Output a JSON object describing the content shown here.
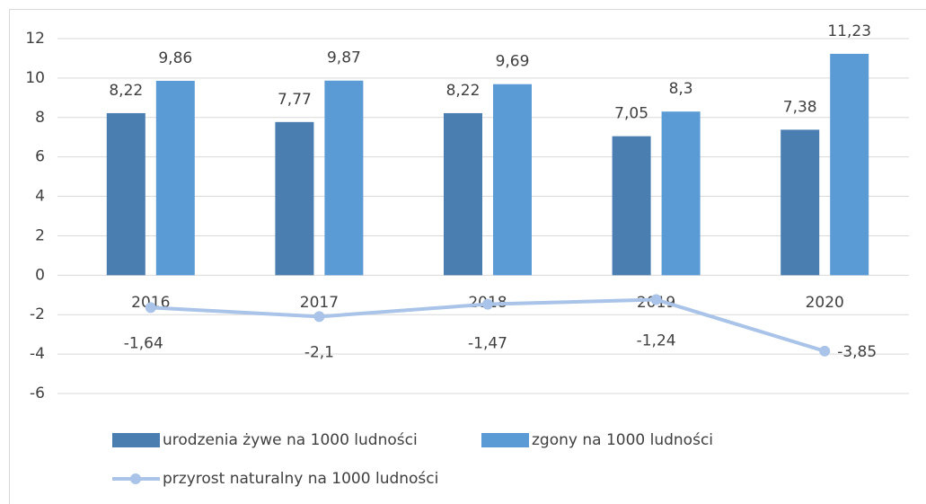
{
  "chart_data": {
    "type": "bar",
    "categories": [
      "2016",
      "2017",
      "2018",
      "2019",
      "2020"
    ],
    "series": [
      {
        "name": "urodzenia żywe na 1000 ludności",
        "type": "bar",
        "color": "#4a7eb0",
        "values": [
          8.22,
          7.77,
          8.22,
          7.05,
          7.38
        ],
        "value_labels": [
          "8,22",
          "7,77",
          "8,22",
          "7,05",
          "7,38"
        ]
      },
      {
        "name": "zgony na 1000 ludności",
        "type": "bar",
        "color": "#5b9bd5",
        "values": [
          9.86,
          9.87,
          9.69,
          8.3,
          11.23
        ],
        "value_labels": [
          "9,86",
          "9,87",
          "9,69",
          "8,3",
          "11,23"
        ]
      },
      {
        "name": "przyrost naturalny na 1000 ludności",
        "type": "line",
        "color": "#a9c4e8",
        "values": [
          -1.64,
          -2.1,
          -1.47,
          -1.24,
          -3.85
        ],
        "value_labels": [
          "-1,64",
          "-2,1",
          "-1,47",
          "-1,24",
          "-3,85"
        ]
      }
    ],
    "ylim": [
      -6,
      12
    ],
    "yticks": [
      12,
      10,
      8,
      6,
      4,
      2,
      0,
      -2,
      -4,
      -6
    ],
    "grid": true
  }
}
